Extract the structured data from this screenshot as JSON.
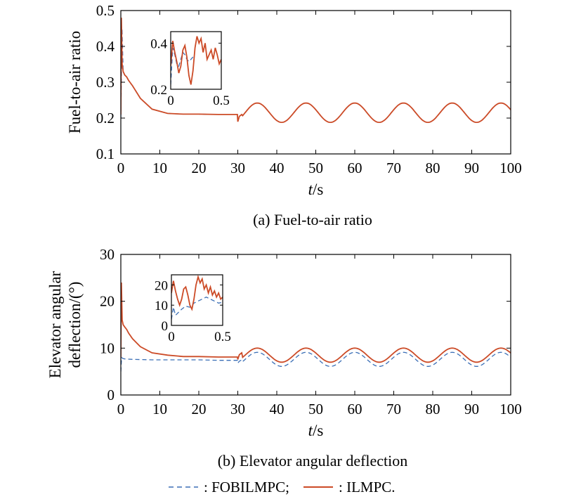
{
  "colors": {
    "fobilmpc": "#3b6fb6",
    "ilmpc": "#cc4b27",
    "axis": "#000000"
  },
  "legend": {
    "fobilmpc_label": ": FOBILMPC;",
    "ilmpc_label": ": ILMPC."
  },
  "chart_data": [
    {
      "type": "line",
      "caption": "(a) Fuel-to-air ratio",
      "ylabel": "Fuel-to-air ratio",
      "xlabel_italic": "t",
      "xlabel_unit": "/s",
      "xlim": [
        0,
        100
      ],
      "ylim": [
        0.1,
        0.5
      ],
      "xticks": [
        "0",
        "10",
        "20",
        "30",
        "40",
        "50",
        "60",
        "70",
        "80",
        "90",
        "100"
      ],
      "yticks": [
        "0.1",
        "0.2",
        "0.3",
        "0.4",
        "0.5"
      ],
      "grid": false,
      "series": [
        {
          "name": "FOBILMPC",
          "style": "dashed",
          "x": [
            0,
            0.3,
            0.6,
            1,
            1.5,
            2,
            3,
            5,
            8,
            12,
            16,
            20,
            25,
            29.9,
            30,
            30.4,
            31
          ],
          "y": [
            0.2,
            0.45,
            0.33,
            0.32,
            0.315,
            0.305,
            0.29,
            0.255,
            0.225,
            0.213,
            0.211,
            0.211,
            0.21,
            0.21,
            0.19,
            0.205,
            0.21
          ],
          "periodic_after": {
            "start": 30,
            "mean": 0.215,
            "amplitude": 0.027,
            "period": 12.5,
            "peak_at": 35
          }
        },
        {
          "name": "ILMPC",
          "style": "solid",
          "x": [
            0,
            0.15,
            0.35,
            0.6,
            1,
            1.5,
            2,
            3,
            5,
            8,
            12,
            16,
            20,
            25,
            29.9,
            30,
            30.4,
            31
          ],
          "y": [
            0.21,
            0.48,
            0.35,
            0.33,
            0.32,
            0.315,
            0.305,
            0.29,
            0.255,
            0.225,
            0.213,
            0.211,
            0.211,
            0.21,
            0.21,
            0.19,
            0.205,
            0.21
          ],
          "periodic_after": {
            "start": 30,
            "mean": 0.215,
            "amplitude": 0.027,
            "period": 12.5,
            "peak_at": 35
          }
        }
      ],
      "inset": {
        "xlim": [
          0,
          0.5
        ],
        "ylim": [
          0.2,
          0.45
        ],
        "xticks": [
          "0",
          "0.5"
        ],
        "yticks": [
          "0.2",
          "0.4"
        ],
        "series": [
          {
            "name": "FOBILMPC",
            "style": "dashed",
            "x": [
              0,
              0.02,
              0.04,
              0.06,
              0.08,
              0.1,
              0.12,
              0.14,
              0.16,
              0.18,
              0.2,
              0.22
            ],
            "y": [
              0.22,
              0.38,
              0.35,
              0.31,
              0.3,
              0.33,
              0.36,
              0.35,
              0.33,
              0.32,
              0.33,
              0.34
            ]
          },
          {
            "name": "ILMPC",
            "style": "solid",
            "x": [
              0,
              0.02,
              0.04,
              0.06,
              0.08,
              0.1,
              0.12,
              0.14,
              0.16,
              0.18,
              0.2,
              0.22,
              0.24,
              0.26,
              0.28,
              0.3,
              0.32,
              0.34,
              0.36,
              0.38,
              0.4,
              0.42,
              0.44,
              0.46,
              0.48,
              0.5
            ],
            "y": [
              0.3,
              0.41,
              0.36,
              0.32,
              0.27,
              0.3,
              0.37,
              0.39,
              0.34,
              0.26,
              0.22,
              0.28,
              0.38,
              0.43,
              0.4,
              0.42,
              0.36,
              0.4,
              0.33,
              0.35,
              0.37,
              0.33,
              0.38,
              0.35,
              0.31,
              0.33
            ]
          }
        ]
      }
    },
    {
      "type": "line",
      "caption": "(b) Elevator angular deflection",
      "ylabel_lines": [
        "Elevator angular",
        "deflection/(°)"
      ],
      "xlabel_italic": "t",
      "xlabel_unit": "/s",
      "xlim": [
        0,
        100
      ],
      "ylim": [
        0,
        30
      ],
      "xticks": [
        "0",
        "10",
        "20",
        "30",
        "40",
        "50",
        "60",
        "70",
        "80",
        "90",
        "100"
      ],
      "yticks": [
        "0",
        "10",
        "20",
        "30"
      ],
      "grid": false,
      "series": [
        {
          "name": "FOBILMPC",
          "style": "dashed",
          "x": [
            0,
            0.2,
            0.5,
            1,
            3,
            8,
            15,
            20,
            25,
            29.9,
            30,
            30.4,
            31
          ],
          "y": [
            5,
            8,
            7.8,
            7.7,
            7.6,
            7.5,
            7.5,
            7.5,
            7.4,
            7.4,
            6.8,
            7.2,
            7.5
          ],
          "periodic_after": {
            "start": 30,
            "mean": 7.6,
            "amplitude": 1.5,
            "period": 12.5,
            "peak_at": 35
          }
        },
        {
          "name": "ILMPC",
          "style": "solid",
          "x": [
            0,
            0.15,
            0.35,
            0.6,
            1,
            1.5,
            2,
            3,
            5,
            8,
            12,
            16,
            20,
            25,
            29.9,
            30,
            30.4,
            31
          ],
          "y": [
            8,
            24,
            16,
            15,
            14.5,
            14,
            13.2,
            12,
            10.3,
            9,
            8.5,
            8.2,
            8.2,
            8.1,
            8.1,
            7.6,
            8.6,
            9
          ],
          "periodic_after": {
            "start": 30,
            "mean": 8.5,
            "amplitude": 1.5,
            "period": 12.5,
            "peak_at": 35
          }
        }
      ],
      "inset": {
        "xlim": [
          0,
          0.5
        ],
        "ylim": [
          0,
          25
        ],
        "xticks": [
          "0",
          "0.5"
        ],
        "yticks": [
          "0",
          "10",
          "20"
        ],
        "series": [
          {
            "name": "FOBILMPC",
            "style": "dashed",
            "x": [
              0,
              0.02,
              0.04,
              0.06,
              0.08,
              0.1,
              0.14,
              0.18,
              0.22,
              0.26,
              0.3,
              0.34,
              0.38,
              0.42,
              0.46,
              0.5
            ],
            "y": [
              3,
              9,
              5,
              6,
              7,
              8,
              9.5,
              9,
              11,
              12,
              13,
              14,
              13,
              12,
              11,
              11.5
            ]
          },
          {
            "name": "ILMPC",
            "style": "solid",
            "x": [
              0,
              0.02,
              0.04,
              0.06,
              0.08,
              0.1,
              0.12,
              0.14,
              0.16,
              0.18,
              0.2,
              0.22,
              0.24,
              0.26,
              0.28,
              0.3,
              0.32,
              0.34,
              0.36,
              0.38,
              0.4,
              0.42,
              0.44,
              0.46,
              0.48,
              0.5
            ],
            "y": [
              16,
              22,
              17,
              13,
              10,
              13,
              18,
              19,
              15,
              10,
              8,
              13,
              20,
              24,
              21,
              23,
              18,
              20,
              16,
              19,
              15,
              17,
              14,
              16,
              13,
              14
            ]
          }
        ]
      }
    }
  ]
}
